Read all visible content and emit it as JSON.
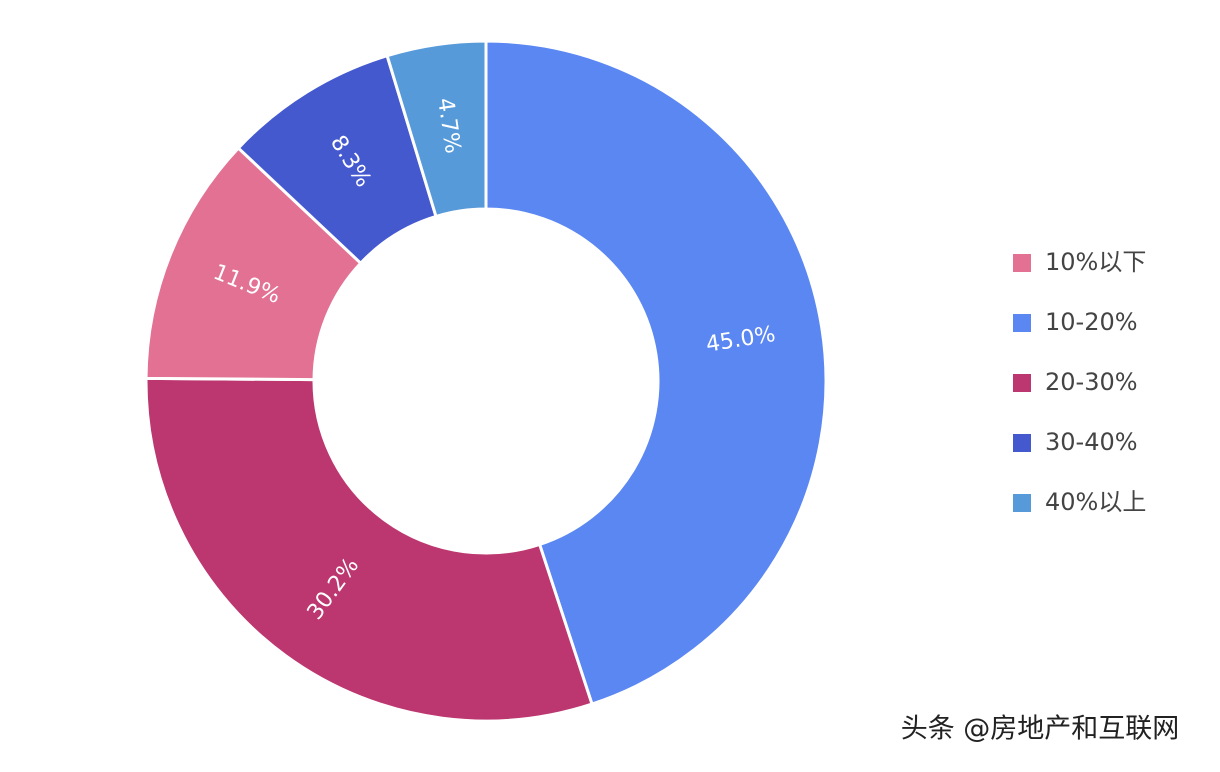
{
  "chart_data": {
    "type": "donut",
    "categories": [
      "10%以下",
      "10-20%",
      "20-30%",
      "30-40%",
      "40%以上"
    ],
    "values": [
      11.9,
      45.0,
      30.2,
      8.3,
      4.7
    ],
    "value_labels": [
      "11.9%",
      "45.0%",
      "30.2%",
      "8.3%",
      "4.7%"
    ],
    "colors": [
      "#e27193",
      "#5b87f3",
      "#bc366f",
      "#4559cf",
      "#579ad9"
    ],
    "legend": "right"
  },
  "watermark": "头条 @房地产和互联网"
}
